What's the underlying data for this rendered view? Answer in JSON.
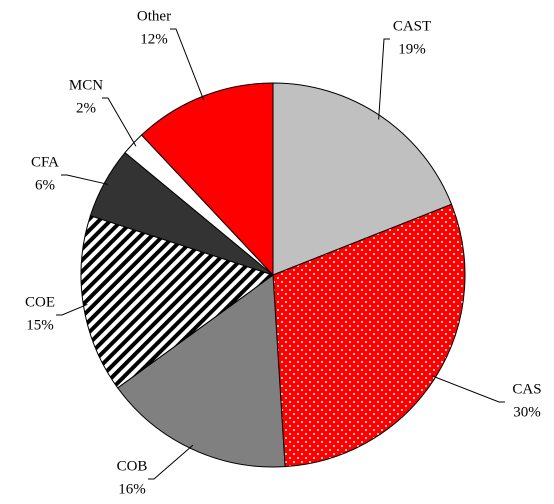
{
  "chart_data": {
    "type": "pie",
    "categories": [
      "CAST",
      "CAS",
      "COB",
      "COE",
      "CFA",
      "MCN",
      "Other"
    ],
    "values": [
      19,
      30,
      16,
      15,
      6,
      2,
      12
    ],
    "value_labels": [
      "19%",
      "30%",
      "16%",
      "15%",
      "6%",
      "2%",
      "12%"
    ],
    "colors": [
      "#c0c0c0",
      "#ff0000",
      "#808080",
      "#ffffff",
      "#333333",
      "#ffffff",
      "#ff0000"
    ],
    "patterns": [
      null,
      "dots",
      null,
      "stripes",
      null,
      null,
      null
    ]
  }
}
